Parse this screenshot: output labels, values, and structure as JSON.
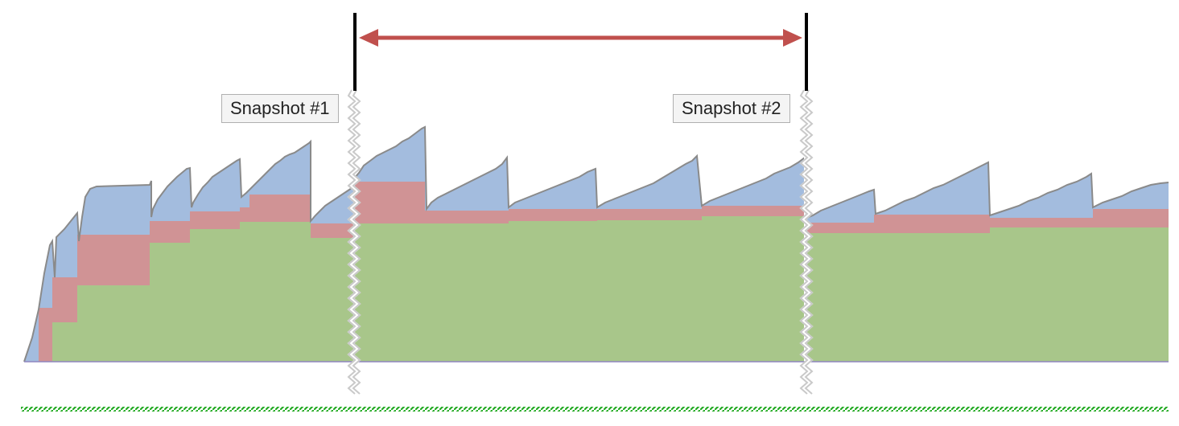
{
  "snapshots": [
    {
      "label": "Snapshot #1"
    },
    {
      "label": "Snapshot #2"
    }
  ],
  "colors": {
    "blue_layer": "#a3bcde",
    "red_layer": "#d09395",
    "green_layer": "#a8c68a",
    "outline": "#8a8a8a",
    "range_arrow": "#c0504d",
    "snapshot_marker": "#000000",
    "break_line": "#c9c9c9",
    "baseline": "#8f86c0",
    "bottom_dashes": "#22aa22"
  }
}
